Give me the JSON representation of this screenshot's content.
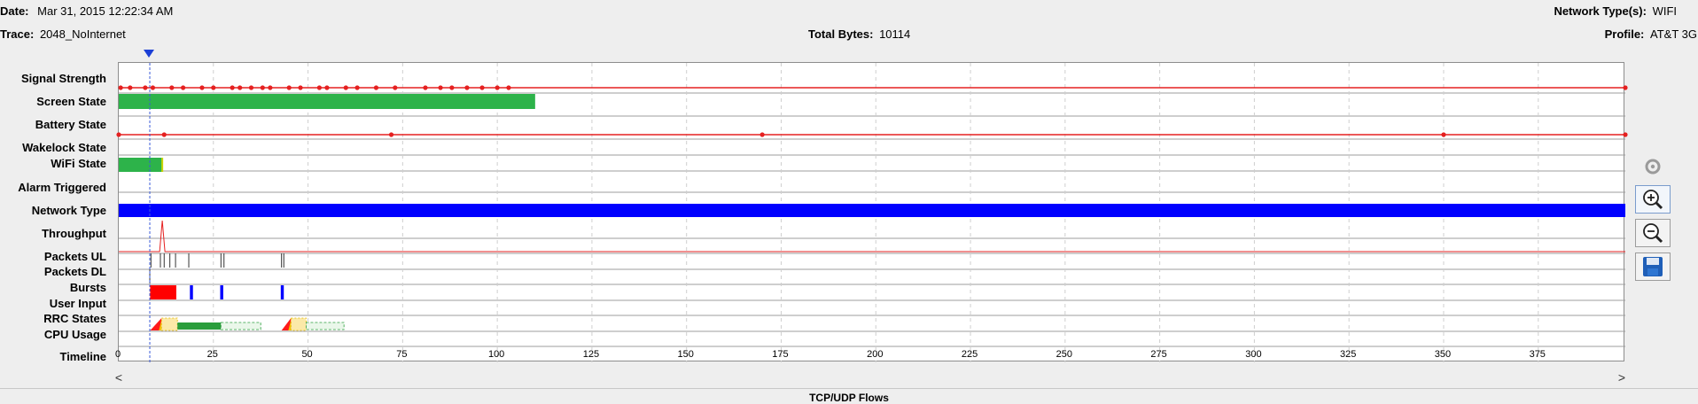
{
  "header": {
    "date_label": "Date:",
    "date_value": "Mar 31, 2015 12:22:34 AM",
    "trace_label": "Trace:",
    "trace_value": "2048_NoInternet",
    "total_bytes_label": "Total Bytes:",
    "total_bytes_value": "10114",
    "network_types_label": "Network Type(s):",
    "network_types_value": "WIFI",
    "profile_label": "Profile:",
    "profile_value": "AT&T 3G"
  },
  "rows": {
    "signal_strength": "Signal Strength",
    "screen_state": "Screen State",
    "battery_state": "Battery State",
    "wakelock_state": "Wakelock State",
    "wifi_state": "WiFi State",
    "alarm_triggered": "Alarm Triggered",
    "network_type": "Network Type",
    "throughput": "Throughput",
    "packets_ul": "Packets UL",
    "packets_dl": "Packets DL",
    "bursts": "Bursts",
    "user_input": "User Input",
    "rrc_states": "RRC States",
    "cpu_usage": "CPU Usage",
    "timeline": "Timeline"
  },
  "timeline": {
    "min": 0,
    "max": 398,
    "ticks": [
      0,
      25,
      50,
      75,
      100,
      125,
      150,
      175,
      200,
      225,
      250,
      275,
      300,
      325,
      350,
      375
    ],
    "cursor_time": 8.2
  },
  "tracks": {
    "signal_points": [
      0.5,
      3,
      7,
      9,
      14,
      17,
      22,
      25,
      30,
      32,
      35,
      38,
      40,
      45,
      48,
      53,
      55,
      60,
      63,
      68,
      73,
      81,
      85,
      88,
      92,
      96,
      100,
      103,
      398
    ],
    "screen_on": [
      0,
      110
    ],
    "battery_points": [
      0,
      12,
      72,
      170,
      350,
      398
    ],
    "wifi_on": [
      0,
      11.5
    ],
    "network_type_span": [
      0,
      398
    ],
    "throughput_peak_time": 11.5,
    "packets_ul": [
      8.5,
      11,
      12,
      13.5,
      15,
      18.5,
      27,
      27.8,
      43,
      43.6
    ],
    "packets_dl": [
      8.2
    ],
    "bursts": [
      {
        "start": 8.3,
        "end": 15.2,
        "color": "#ff0000"
      },
      {
        "start": 18.8,
        "end": 19.6,
        "color": "#0000ff"
      },
      {
        "start": 26.8,
        "end": 27.6,
        "color": "#0000ff"
      },
      {
        "start": 42.8,
        "end": 43.6,
        "color": "#0000ff"
      }
    ],
    "rrc": [
      {
        "start": 8.3,
        "end": 11.3,
        "kind": "promo"
      },
      {
        "start": 11.3,
        "end": 15.5,
        "kind": "fach"
      },
      {
        "start": 15.5,
        "end": 27.0,
        "kind": "dch"
      },
      {
        "start": 27.0,
        "end": 37.5,
        "kind": "tail"
      },
      {
        "start": 43.0,
        "end": 45.5,
        "kind": "promo"
      },
      {
        "start": 45.5,
        "end": 49.5,
        "kind": "fach"
      },
      {
        "start": 49.5,
        "end": 59.5,
        "kind": "tail"
      }
    ]
  },
  "colors": {
    "signal": "#e52020",
    "screen_on": "#2db34a",
    "wifi_on": "#2db34a",
    "network_type": "#0000ff",
    "throughput": "#e52020",
    "packets": "#333333",
    "grid": "#cfcfcf",
    "cursor": "#3a5bd9"
  },
  "controls": {
    "refresh_icon": "refresh-icon",
    "zoom_in_icon": "zoom-in-icon",
    "zoom_out_icon": "zoom-out-icon",
    "save_icon": "save-icon",
    "scroll_left": "<",
    "scroll_right": ">"
  },
  "footer": {
    "section_title": "TCP/UDP Flows"
  }
}
